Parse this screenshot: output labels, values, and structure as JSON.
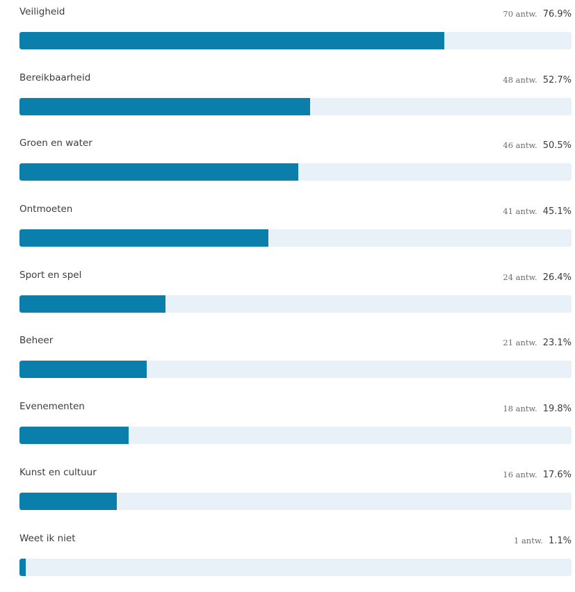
{
  "colors": {
    "bar_fill": "#0a7fac",
    "bar_track": "#e8f1f7",
    "text": "#3b3b3b"
  },
  "count_suffix": "antw.",
  "chart_data": {
    "type": "bar",
    "orientation": "horizontal",
    "categories": [
      "Veiligheid",
      "Bereikbaarheid",
      "Groen en water",
      "Ontmoeten",
      "Sport en spel",
      "Beheer",
      "Evenementen",
      "Kunst en cultuur",
      "Weet ik niet"
    ],
    "counts": [
      70,
      48,
      46,
      41,
      24,
      21,
      18,
      16,
      1
    ],
    "values": [
      76.9,
      52.7,
      50.5,
      45.1,
      26.4,
      23.1,
      19.8,
      17.6,
      1.1
    ],
    "value_labels": [
      "76.9%",
      "52.7%",
      "50.5%",
      "45.1%",
      "26.4%",
      "23.1%",
      "19.8%",
      "17.6%",
      "1.1%"
    ],
    "count_labels": [
      "70 antw.",
      "48 antw.",
      "46 antw.",
      "41 antw.",
      "24 antw.",
      "21 antw.",
      "18 antw.",
      "16 antw.",
      "1 antw."
    ],
    "xlim": [
      0,
      100
    ],
    "unit": "%",
    "grid": false,
    "legend": "none"
  }
}
